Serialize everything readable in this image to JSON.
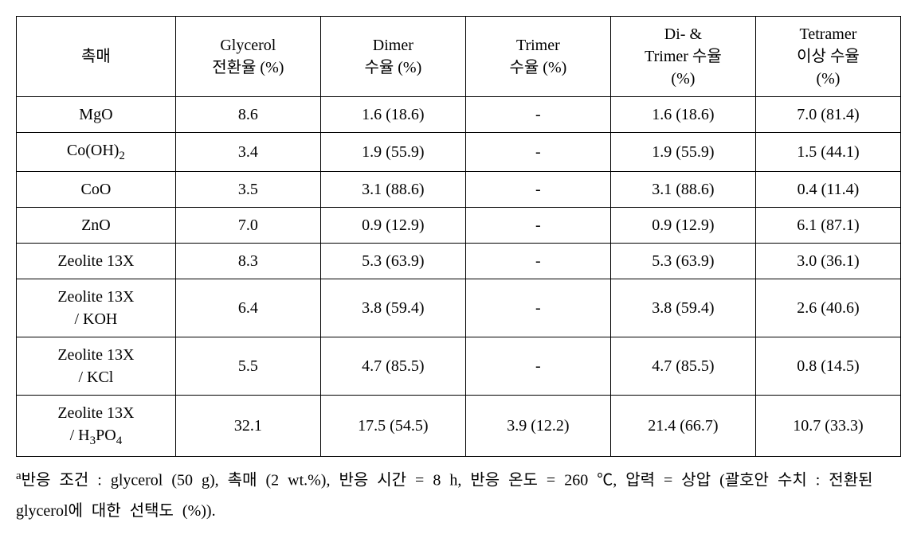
{
  "table": {
    "columns": [
      "촉매",
      "Glycerol<br>전환율 (%)",
      "Dimer<br>수율 (%)",
      "Trimer<br>수율 (%)",
      "Di- &<br>Trimer 수율<br>(%)",
      "Tetramer<br>이상 수율<br>(%)"
    ],
    "rows": [
      {
        "cat": "MgO",
        "glycerol": "8.6",
        "dimer": "1.6 (18.6)",
        "trimer": "-",
        "ditrimer": "1.6 (18.6)",
        "tetramer": "7.0 (81.4)"
      },
      {
        "cat": "Co(OH)<sub>2</sub>",
        "glycerol": "3.4",
        "dimer": "1.9 (55.9)",
        "trimer": "-",
        "ditrimer": "1.9 (55.9)",
        "tetramer": "1.5 (44.1)"
      },
      {
        "cat": "CoO",
        "glycerol": "3.5",
        "dimer": "3.1 (88.6)",
        "trimer": "-",
        "ditrimer": "3.1 (88.6)",
        "tetramer": "0.4 (11.4)"
      },
      {
        "cat": "ZnO",
        "glycerol": "7.0",
        "dimer": "0.9 (12.9)",
        "trimer": "-",
        "ditrimer": "0.9 (12.9)",
        "tetramer": "6.1 (87.1)"
      },
      {
        "cat": "Zeolite 13X",
        "glycerol": "8.3",
        "dimer": "5.3 (63.9)",
        "trimer": "-",
        "ditrimer": "5.3 (63.9)",
        "tetramer": "3.0 (36.1)"
      },
      {
        "cat": "Zeolite 13X<br>/ KOH",
        "glycerol": "6.4",
        "dimer": "3.8 (59.4)",
        "trimer": "-",
        "ditrimer": "3.8 (59.4)",
        "tetramer": "2.6 (40.6)"
      },
      {
        "cat": "Zeolite 13X<br>/ KCl",
        "glycerol": "5.5",
        "dimer": "4.7 (85.5)",
        "trimer": "-",
        "ditrimer": "4.7 (85.5)",
        "tetramer": "0.8 (14.5)"
      },
      {
        "cat": "Zeolite 13X<br>/ H<sub>3</sub>PO<sub>4</sub>",
        "glycerol": "32.1",
        "dimer": "17.5 (54.5)",
        "trimer": "3.9 (12.2)",
        "ditrimer": "21.4 (66.7)",
        "tetramer": "10.7 (33.3)"
      }
    ]
  },
  "footnote": "<sup>a</sup>반응 조건 : glycerol (50 g), 촉매 (2 wt.%), 반응 시간 = 8 h, 반응 온도 = 260 ℃, 압력 = 상압 (괄호안 수치 : 전환된 glycerol에 대한 선택도 (%))."
}
